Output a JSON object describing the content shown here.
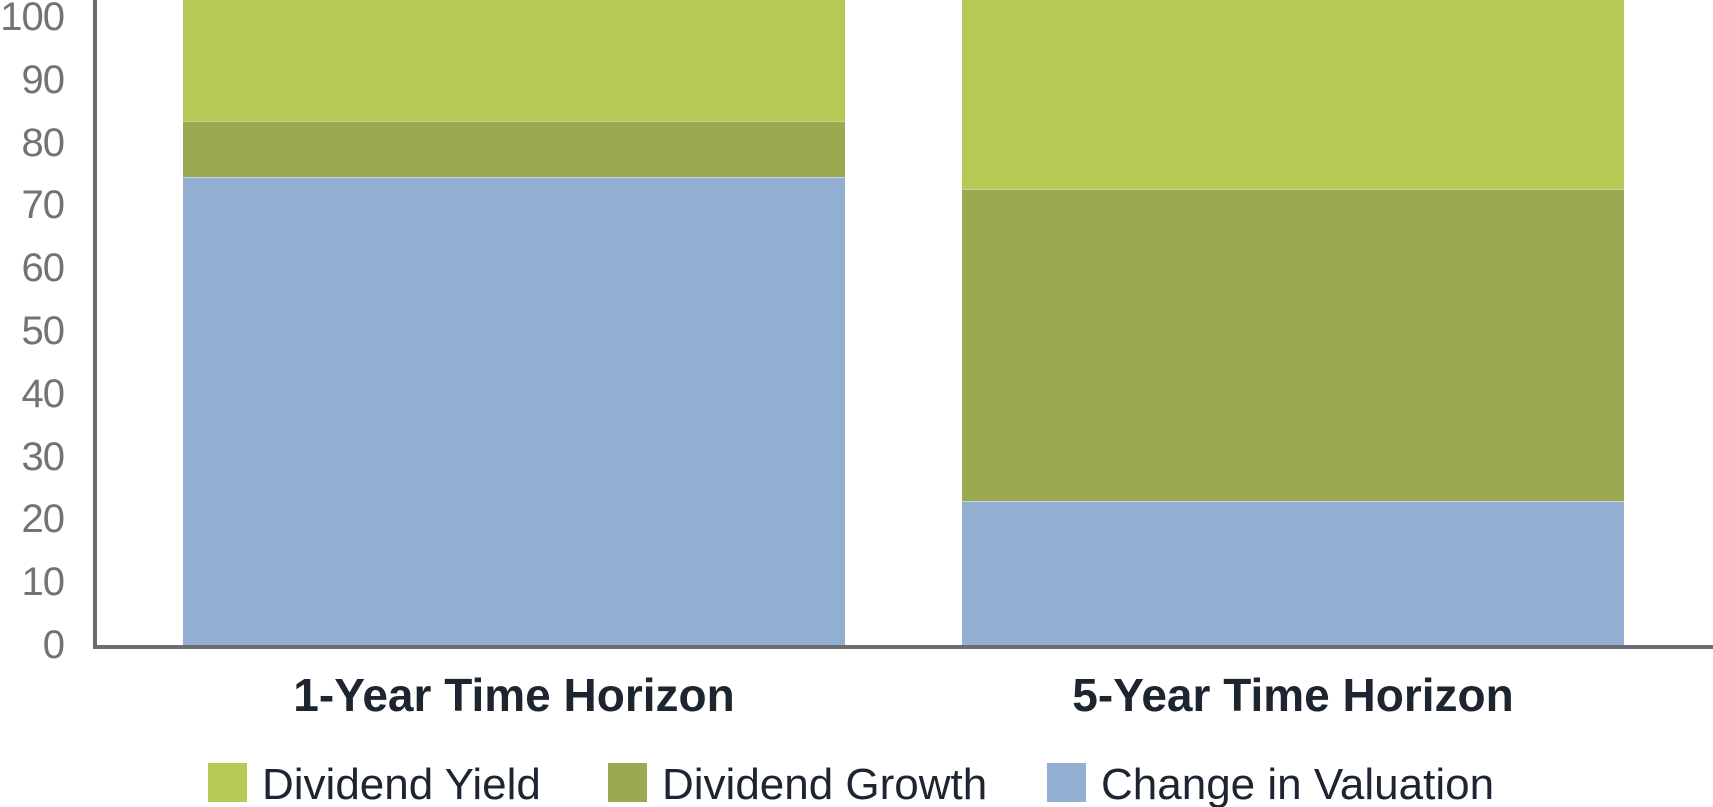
{
  "chart_data": {
    "type": "bar",
    "variant": "stacked-column",
    "title": "",
    "xlabel": "",
    "ylabel": "",
    "categories": [
      "1-Year Time Horizon",
      "5-Year Time Horizon"
    ],
    "series": [
      {
        "name": "Dividend Yield",
        "color": "#b6c954",
        "values": [
          16,
          27
        ]
      },
      {
        "name": "Dividend Growth",
        "color": "#9ca951",
        "values": [
          9,
          50
        ]
      },
      {
        "name": "Change in Valuation",
        "color": "#92afd1",
        "values": [
          75,
          23
        ]
      }
    ],
    "stack_order_top_to_bottom": [
      "Dividend Yield",
      "Dividend Growth",
      "Change in Valuation"
    ],
    "ylim": [
      0,
      100
    ],
    "yticks": [
      0,
      10,
      20,
      30,
      40,
      50,
      60,
      70,
      80,
      90,
      100
    ],
    "grid": false,
    "legend_position": "bottom",
    "top_edge_cropped": true
  },
  "style_colors": {
    "axis_line": "#6b6e71",
    "tick_text": "#737373",
    "label_text": "#1d2531",
    "background": "#ffffff"
  }
}
